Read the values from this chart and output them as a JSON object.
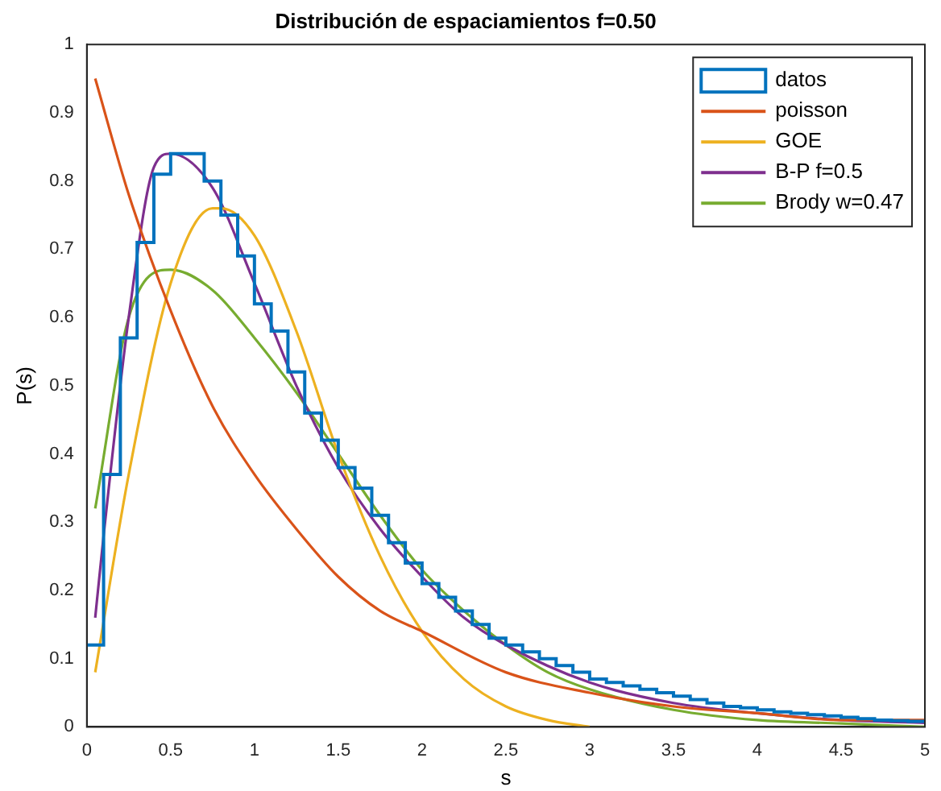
{
  "chart_data": {
    "type": "histogram",
    "title": "Distribución de espaciamientos f=0.50",
    "xlabel": "s",
    "ylabel": "P(s)",
    "xlim": [
      0,
      5
    ],
    "xticks": [
      0,
      0.5,
      1,
      1.5,
      2,
      2.5,
      3,
      3.5,
      4,
      4.5,
      5
    ],
    "ylim": [
      0,
      1
    ],
    "yticks": [
      0,
      0.1,
      0.2,
      0.3,
      0.4,
      0.5,
      0.6,
      0.7,
      0.8,
      0.9,
      1
    ],
    "grid": false,
    "legend": "top right",
    "marker": "none",
    "series": [
      {
        "type": "histogram",
        "name": "datos",
        "color": "#0072bd",
        "bins": [
          0,
          0.1,
          0.2,
          0.3,
          0.4,
          0.5,
          0.6,
          0.7,
          0.8,
          0.9,
          1,
          1.1,
          1.2,
          1.3,
          1.4,
          1.5,
          1.6,
          1.7,
          1.8,
          1.9,
          2,
          2.1,
          2.2,
          2.3,
          2.4,
          2.5,
          2.6,
          2.7,
          2.8,
          2.9,
          3,
          3.1,
          3.2,
          3.3,
          3.4,
          3.5,
          3.6,
          3.7,
          3.8,
          3.9,
          4,
          4.1,
          4.2,
          4.3,
          4.4,
          4.5,
          4.6,
          4.7,
          4.8,
          4.9,
          5
        ],
        "values": [
          0.12,
          0.37,
          0.57,
          0.71,
          0.81,
          0.84,
          0.84,
          0.8,
          0.75,
          0.69,
          0.62,
          0.58,
          0.52,
          0.46,
          0.42,
          0.38,
          0.35,
          0.31,
          0.27,
          0.24,
          0.21,
          0.19,
          0.17,
          0.15,
          0.13,
          0.12,
          0.11,
          0.1,
          0.09,
          0.08,
          0.07,
          0.065,
          0.06,
          0.055,
          0.05,
          0.045,
          0.04,
          0.035,
          0.03,
          0.028,
          0.025,
          0.022,
          0.02,
          0.018,
          0.016,
          0.014,
          0.012,
          0.01,
          0.009,
          0.008
        ]
      },
      {
        "type": "line",
        "name": "poisson",
        "color": "#d95319",
        "x": [
          0.05,
          0.25,
          0.5,
          0.75,
          1,
          1.25,
          1.5,
          1.75,
          2,
          2.5,
          3,
          3.5,
          4,
          4.5,
          5
        ],
        "values": [
          0.95,
          0.78,
          0.61,
          0.47,
          0.37,
          0.29,
          0.22,
          0.17,
          0.14,
          0.08,
          0.05,
          0.03,
          0.02,
          0.01,
          0.01
        ]
      },
      {
        "type": "line",
        "name": "GOE",
        "color": "#edb120",
        "x": [
          0.05,
          0.25,
          0.5,
          0.75,
          0.8,
          1,
          1.25,
          1.5,
          1.75,
          2,
          2.25,
          2.5,
          2.75,
          3
        ],
        "values": [
          0.08,
          0.37,
          0.65,
          0.76,
          0.76,
          0.72,
          0.58,
          0.4,
          0.25,
          0.14,
          0.07,
          0.03,
          0.01,
          0
        ]
      },
      {
        "type": "line",
        "name": "B-P f=0.5",
        "color": "#7e2f8e",
        "x": [
          0.05,
          0.1,
          0.25,
          0.4,
          0.5,
          0.75,
          1,
          1.25,
          1.5,
          1.75,
          2,
          2.25,
          2.5,
          3,
          3.5,
          4,
          4.5,
          5
        ],
        "values": [
          0.16,
          0.28,
          0.6,
          0.82,
          0.84,
          0.79,
          0.65,
          0.5,
          0.38,
          0.29,
          0.22,
          0.16,
          0.12,
          0.065,
          0.035,
          0.02,
          0.01,
          0.006
        ]
      },
      {
        "type": "line",
        "name": "Brody w=0.47",
        "color": "#77ac30",
        "x": [
          0.05,
          0.25,
          0.5,
          0.75,
          1,
          1.25,
          1.5,
          1.75,
          2,
          2.25,
          2.5,
          2.75,
          3,
          3.5,
          4,
          4.5,
          5
        ],
        "values": [
          0.32,
          0.6,
          0.67,
          0.64,
          0.57,
          0.49,
          0.4,
          0.31,
          0.23,
          0.17,
          0.12,
          0.08,
          0.055,
          0.025,
          0.01,
          0.005,
          0
        ]
      }
    ]
  }
}
